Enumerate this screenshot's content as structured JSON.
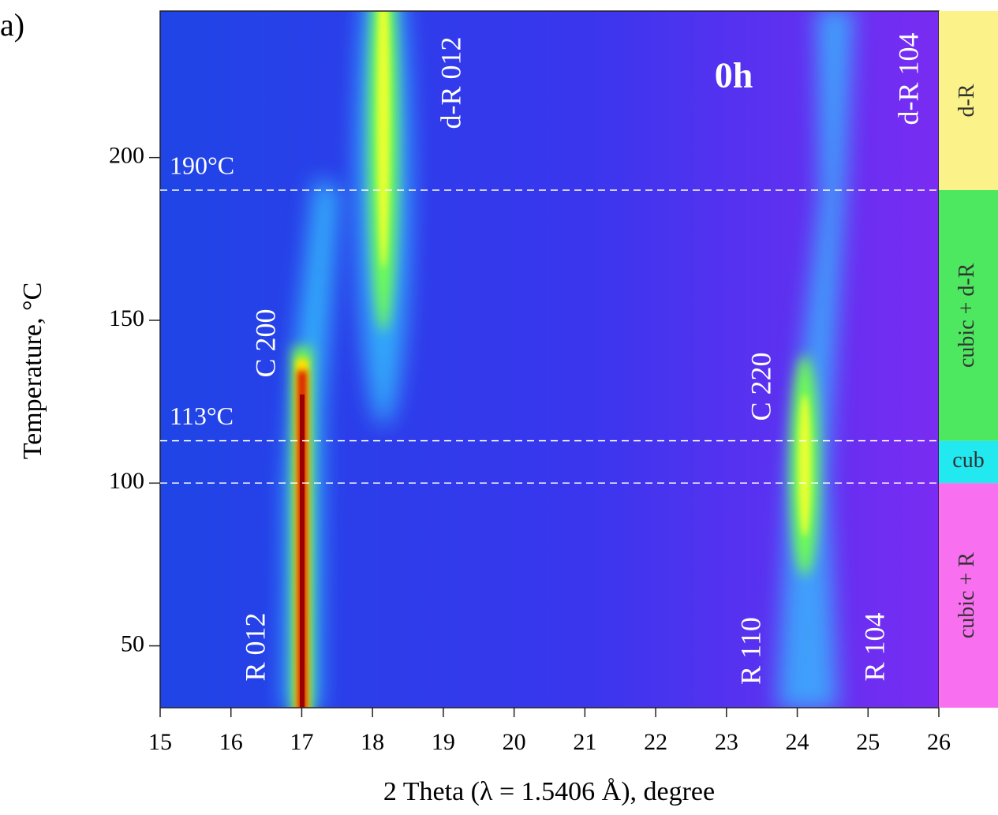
{
  "chart_data": {
    "type": "heatmap",
    "panel_label": "a)",
    "x_label": "2 Theta (λ = 1.5406 Å), degree",
    "y_label": "Temperature, °C",
    "xlim": [
      15,
      26
    ],
    "ylim": [
      31,
      245
    ],
    "xticks": [
      15,
      16,
      17,
      18,
      19,
      20,
      21,
      22,
      23,
      24,
      25,
      26
    ],
    "yticks": [
      50,
      100,
      150,
      200
    ],
    "hlines": [
      {
        "value": 190,
        "label": "190°C"
      },
      {
        "value": 113,
        "label": "113°C"
      },
      100
    ],
    "hline_color": "#ffffff",
    "annotations": [
      "R 012",
      "C 200",
      "d-R 012",
      "C 220",
      "R 110",
      "R 104",
      "d-R 104",
      "0h"
    ],
    "phases": [
      {
        "label": "d-R",
        "from": 190,
        "to": 245,
        "color": "#fbf28a"
      },
      {
        "label": "cubic + d-R",
        "from": 113,
        "to": 190,
        "color": "#4de860"
      },
      {
        "label": "cub",
        "from": 100,
        "to": 113,
        "color": "#22e8f0"
      },
      {
        "label": "cubic + R",
        "from": 31,
        "to": 100,
        "color": "#f870f0"
      }
    ]
  }
}
